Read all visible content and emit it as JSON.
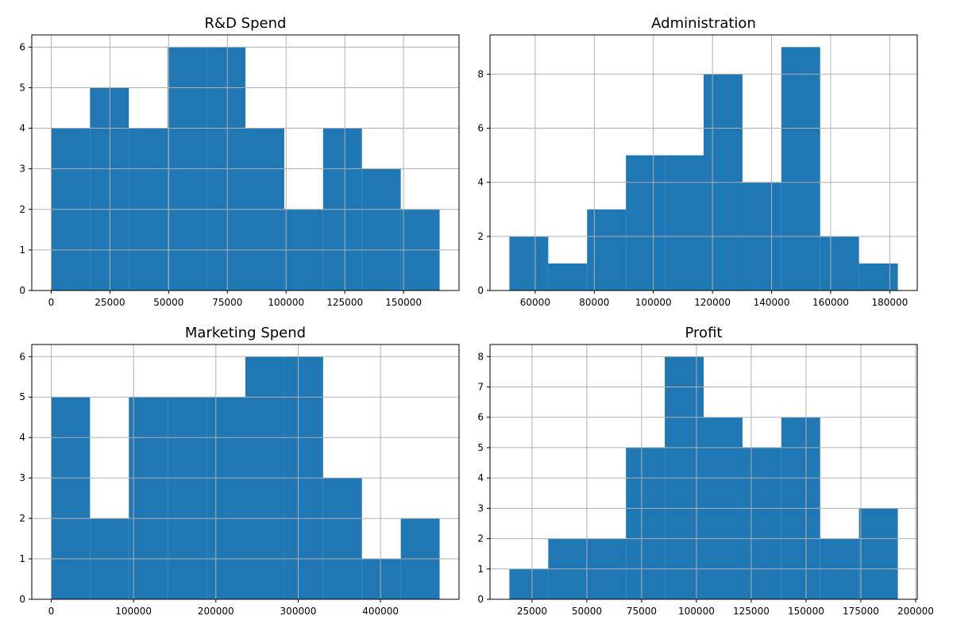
{
  "colors": {
    "bar": "#1f77b4",
    "grid": "#b0b0b0",
    "axis": "#000000"
  },
  "chart_data": [
    {
      "type": "bar",
      "title": "R&D Spend",
      "bin_edges": [
        0,
        16534.92,
        33069.84,
        49604.76,
        66139.68,
        82674.6,
        99209.52,
        115744.44,
        132279.36,
        148814.28,
        165349.2
      ],
      "values": [
        4,
        5,
        4,
        6,
        6,
        4,
        2,
        4,
        3,
        2
      ],
      "xlim": [
        -8267.46,
        173616.66
      ],
      "ylim": [
        0,
        6.3
      ],
      "xticks": [
        0,
        25000,
        50000,
        75000,
        100000,
        125000,
        150000
      ],
      "xtick_labels": [
        "0",
        "25000",
        "50000",
        "75000",
        "100000",
        "125000",
        "150000"
      ],
      "yticks": [
        0,
        1,
        2,
        3,
        4,
        5,
        6
      ],
      "ytick_labels": [
        "0",
        "1",
        "2",
        "3",
        "4",
        "5",
        "6"
      ],
      "grid": true
    },
    {
      "type": "bar",
      "title": "Administration",
      "bin_edges": [
        51283,
        64428,
        77573,
        90718,
        103863,
        117008,
        130153,
        143298,
        156443,
        169588,
        182733
      ],
      "values": [
        2,
        1,
        3,
        5,
        5,
        8,
        4,
        9,
        2,
        1
      ],
      "xlim": [
        44710.5,
        189305.5
      ],
      "ylim": [
        0,
        9.45
      ],
      "xticks": [
        60000,
        80000,
        100000,
        120000,
        140000,
        160000,
        180000
      ],
      "xtick_labels": [
        "60000",
        "80000",
        "100000",
        "120000",
        "140000",
        "160000",
        "180000"
      ],
      "yticks": [
        0,
        2,
        4,
        6,
        8
      ],
      "ytick_labels": [
        "0",
        "2",
        "4",
        "6",
        "8"
      ],
      "grid": true
    },
    {
      "type": "bar",
      "title": "Marketing Spend",
      "bin_edges": [
        0,
        47178.4,
        94356.8,
        141535.2,
        188713.6,
        235892,
        283070.4,
        330248.8,
        377427.2,
        424605.6,
        471784
      ],
      "values": [
        5,
        2,
        5,
        5,
        5,
        6,
        6,
        3,
        1,
        2
      ],
      "xlim": [
        -23589.2,
        495373.2
      ],
      "ylim": [
        0,
        6.3
      ],
      "xticks": [
        0,
        100000,
        200000,
        300000,
        400000
      ],
      "xtick_labels": [
        "0",
        "100000",
        "200000",
        "300000",
        "400000"
      ],
      "yticks": [
        0,
        1,
        2,
        3,
        4,
        5,
        6
      ],
      "ytick_labels": [
        "0",
        "1",
        "2",
        "3",
        "4",
        "5",
        "6"
      ],
      "grid": true
    },
    {
      "type": "bar",
      "title": "Profit",
      "bin_edges": [
        14681,
        32401,
        50121,
        67841,
        85561,
        103281,
        121001,
        138721,
        156441,
        174161,
        191881
      ],
      "values": [
        1,
        2,
        2,
        5,
        8,
        6,
        5,
        6,
        2,
        3
      ],
      "xlim": [
        5821,
        200741
      ],
      "ylim": [
        0,
        8.4
      ],
      "xticks": [
        25000,
        50000,
        75000,
        100000,
        125000,
        150000,
        175000,
        200000
      ],
      "xtick_labels": [
        "25000",
        "50000",
        "75000",
        "100000",
        "125000",
        "150000",
        "175000",
        "200000"
      ],
      "yticks": [
        0,
        1,
        2,
        3,
        4,
        5,
        6,
        7,
        8
      ],
      "ytick_labels": [
        "0",
        "1",
        "2",
        "3",
        "4",
        "5",
        "6",
        "7",
        "8"
      ],
      "grid": true
    }
  ]
}
